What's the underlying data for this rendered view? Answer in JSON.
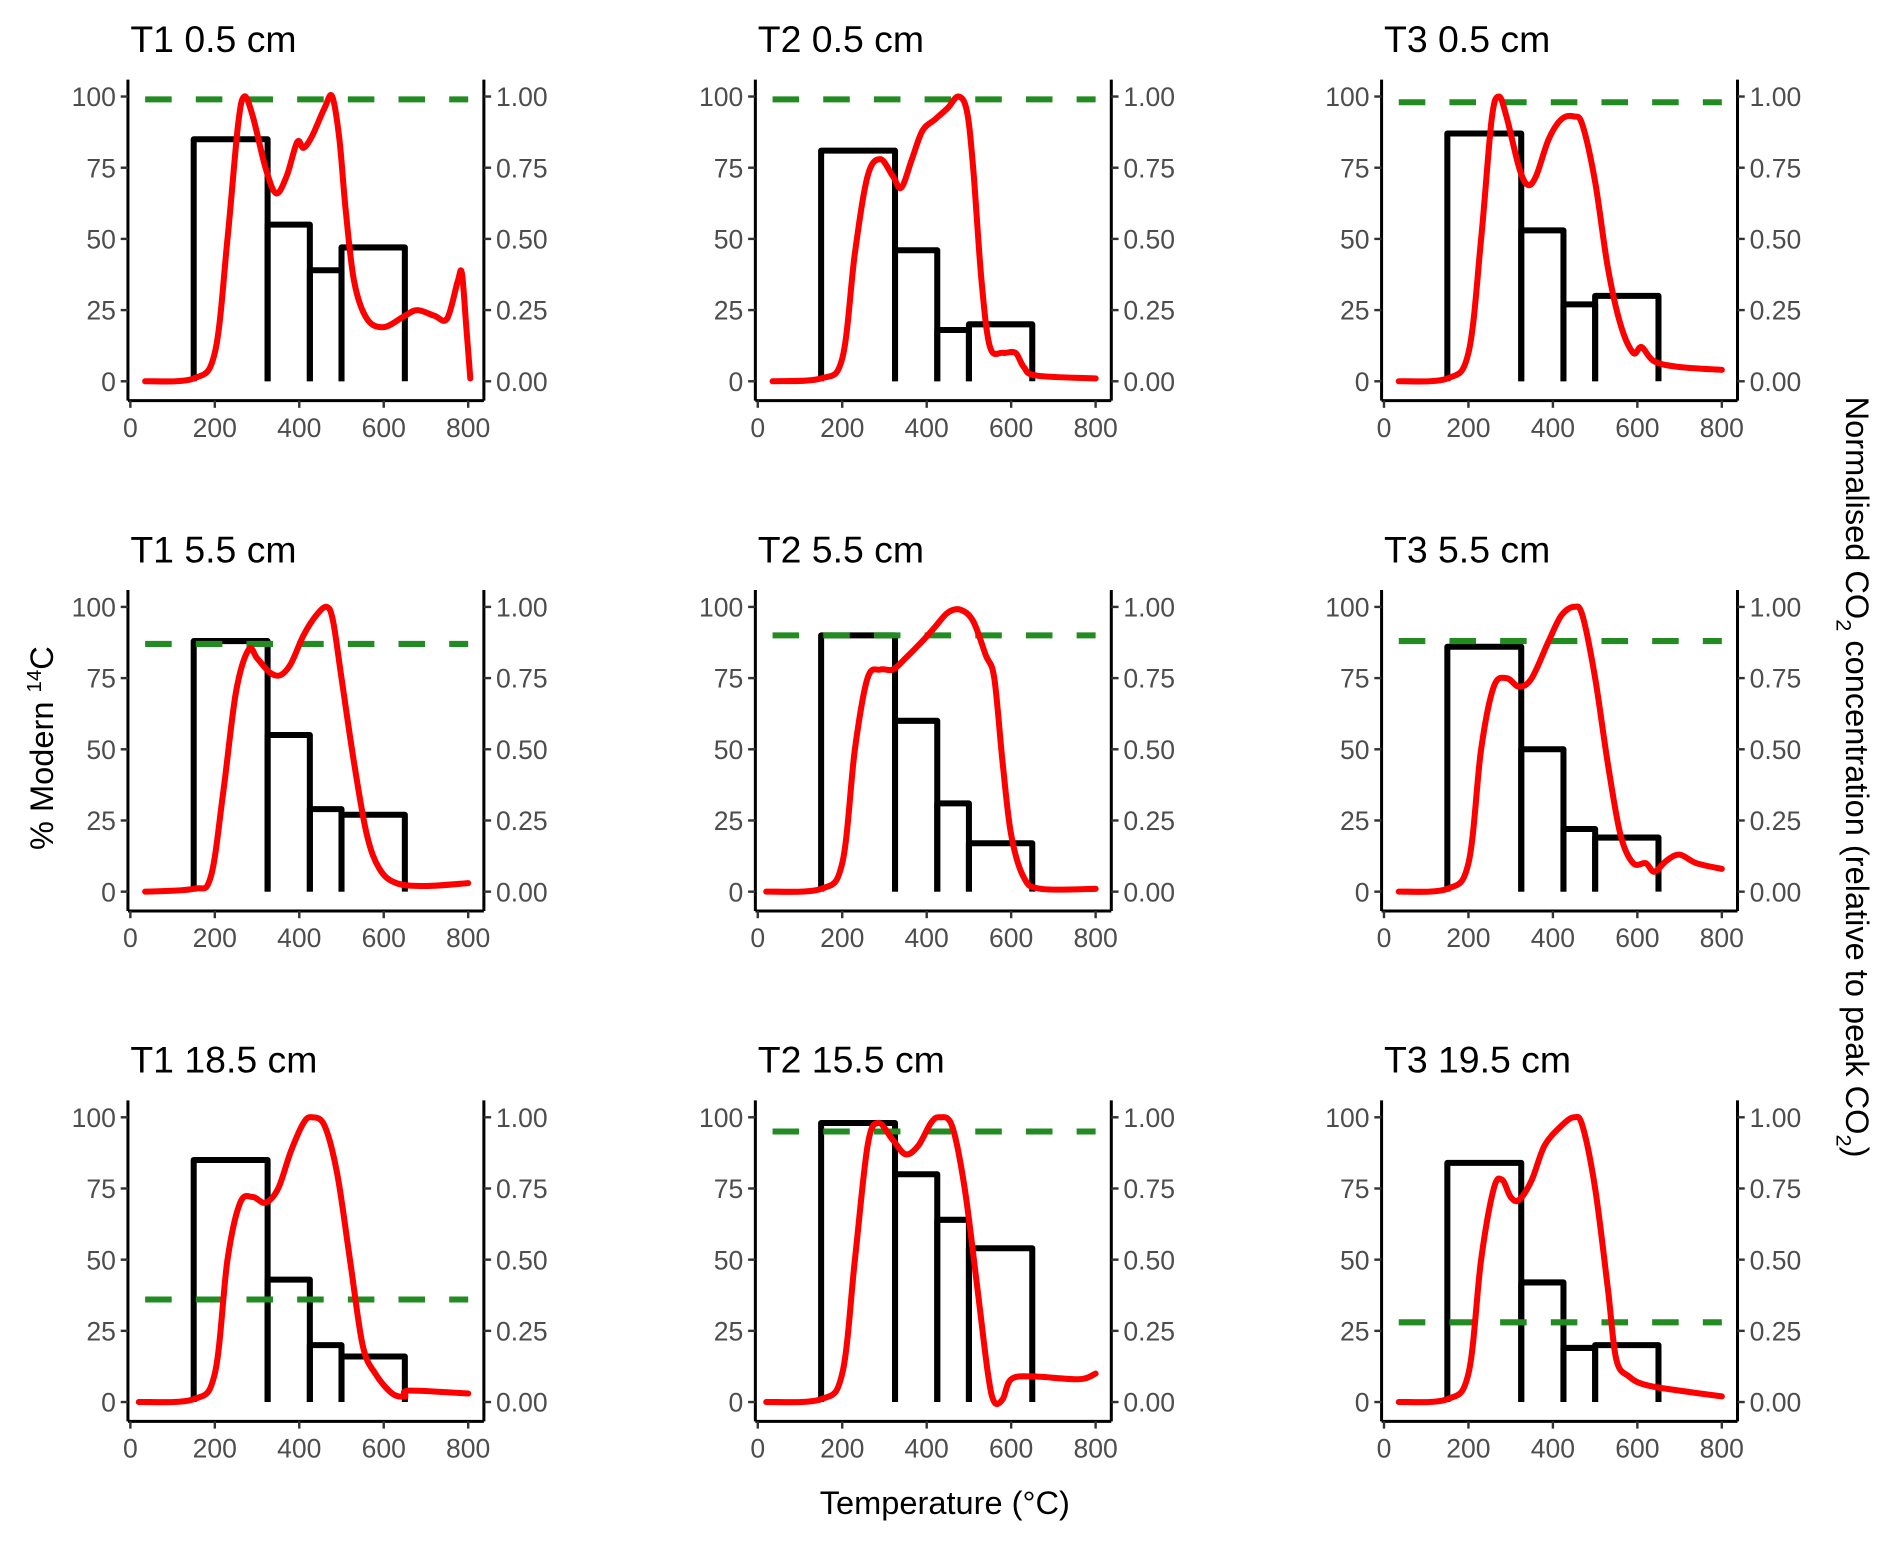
{
  "chart_data": {
    "type": "line",
    "xlabel": "Temperature (°C)",
    "ylabel_left": "% Modern ¹⁴C",
    "ylabel_left_main": "% Modern ",
    "ylabel_left_sup": "14",
    "ylabel_left_end": "C",
    "ylabel_right": "Normalised CO₂ concentration (relative to peak CO₂)",
    "ylabel_right_a": "Normalised CO",
    "ylabel_right_b": " concentration (relative to peak CO",
    "ylabel_right_c": ")",
    "sub2": "2",
    "xlim": [
      0,
      800
    ],
    "ylim_left": [
      0,
      100
    ],
    "ylim_right": [
      0,
      1
    ],
    "x_ticks": [
      "0",
      "200",
      "400",
      "600",
      "800"
    ],
    "y_ticks_left": [
      "0",
      "25",
      "50",
      "75",
      "100"
    ],
    "y_ticks_right": [
      "0.00",
      "0.25",
      "0.50",
      "0.75",
      "1.00"
    ],
    "colors": {
      "bars": "#000000",
      "co2": "#ff0000",
      "bulk": "#228b22"
    },
    "bar_edges": [
      150,
      325,
      425,
      500,
      650
    ],
    "panels": [
      {
        "title": "T1 0.5 cm",
        "bulk": 99,
        "bars": [
          85,
          55,
          39,
          47
        ],
        "co2": [
          [
            35,
            0
          ],
          [
            150,
            0.01
          ],
          [
            200,
            0.1
          ],
          [
            230,
            0.5
          ],
          [
            255,
            0.9
          ],
          [
            270,
            1.0
          ],
          [
            290,
            0.93
          ],
          [
            320,
            0.75
          ],
          [
            345,
            0.66
          ],
          [
            370,
            0.72
          ],
          [
            395,
            0.84
          ],
          [
            410,
            0.82
          ],
          [
            430,
            0.86
          ],
          [
            460,
            0.96
          ],
          [
            478,
            1.0
          ],
          [
            495,
            0.85
          ],
          [
            510,
            0.6
          ],
          [
            530,
            0.35
          ],
          [
            560,
            0.22
          ],
          [
            600,
            0.19
          ],
          [
            650,
            0.23
          ],
          [
            680,
            0.25
          ],
          [
            720,
            0.23
          ],
          [
            750,
            0.22
          ],
          [
            775,
            0.35
          ],
          [
            785,
            0.38
          ],
          [
            795,
            0.2
          ],
          [
            805,
            0.01
          ]
        ]
      },
      {
        "title": "T2 0.5 cm",
        "bulk": 99,
        "bars": [
          81,
          46,
          18,
          20
        ],
        "co2": [
          [
            35,
            0
          ],
          [
            150,
            0.01
          ],
          [
            200,
            0.08
          ],
          [
            230,
            0.45
          ],
          [
            260,
            0.72
          ],
          [
            290,
            0.78
          ],
          [
            320,
            0.72
          ],
          [
            340,
            0.68
          ],
          [
            365,
            0.78
          ],
          [
            390,
            0.88
          ],
          [
            420,
            0.92
          ],
          [
            450,
            0.96
          ],
          [
            475,
            1.0
          ],
          [
            495,
            0.95
          ],
          [
            510,
            0.75
          ],
          [
            530,
            0.35
          ],
          [
            550,
            0.12
          ],
          [
            580,
            0.1
          ],
          [
            610,
            0.1
          ],
          [
            630,
            0.05
          ],
          [
            660,
            0.02
          ],
          [
            800,
            0.01
          ]
        ]
      },
      {
        "title": "T3 0.5 cm",
        "bulk": 98,
        "bars": [
          87,
          53,
          27,
          30
        ],
        "co2": [
          [
            35,
            0
          ],
          [
            150,
            0.01
          ],
          [
            200,
            0.1
          ],
          [
            230,
            0.5
          ],
          [
            255,
            0.92
          ],
          [
            272,
            1.0
          ],
          [
            290,
            0.93
          ],
          [
            320,
            0.75
          ],
          [
            340,
            0.69
          ],
          [
            360,
            0.72
          ],
          [
            390,
            0.85
          ],
          [
            420,
            0.92
          ],
          [
            450,
            0.93
          ],
          [
            470,
            0.9
          ],
          [
            500,
            0.7
          ],
          [
            530,
            0.4
          ],
          [
            560,
            0.2
          ],
          [
            590,
            0.1
          ],
          [
            610,
            0.12
          ],
          [
            640,
            0.07
          ],
          [
            700,
            0.05
          ],
          [
            800,
            0.04
          ]
        ]
      },
      {
        "title": "T1 5.5 cm",
        "bulk": 87,
        "bars": [
          88,
          55,
          29,
          27
        ],
        "co2": [
          [
            35,
            0
          ],
          [
            150,
            0.01
          ],
          [
            190,
            0.05
          ],
          [
            220,
            0.35
          ],
          [
            250,
            0.7
          ],
          [
            280,
            0.85
          ],
          [
            300,
            0.82
          ],
          [
            330,
            0.77
          ],
          [
            355,
            0.76
          ],
          [
            380,
            0.8
          ],
          [
            410,
            0.9
          ],
          [
            440,
            0.97
          ],
          [
            465,
            1.0
          ],
          [
            480,
            0.95
          ],
          [
            500,
            0.75
          ],
          [
            530,
            0.45
          ],
          [
            560,
            0.2
          ],
          [
            590,
            0.08
          ],
          [
            630,
            0.03
          ],
          [
            700,
            0.02
          ],
          [
            800,
            0.03
          ]
        ]
      },
      {
        "title": "T2 5.5 cm",
        "bulk": 90,
        "bars": [
          90,
          60,
          31,
          17
        ],
        "co2": [
          [
            20,
            0
          ],
          [
            150,
            0.01
          ],
          [
            200,
            0.1
          ],
          [
            230,
            0.5
          ],
          [
            260,
            0.75
          ],
          [
            290,
            0.78
          ],
          [
            320,
            0.78
          ],
          [
            350,
            0.82
          ],
          [
            390,
            0.88
          ],
          [
            420,
            0.93
          ],
          [
            450,
            0.98
          ],
          [
            480,
            0.99
          ],
          [
            510,
            0.95
          ],
          [
            540,
            0.83
          ],
          [
            560,
            0.75
          ],
          [
            580,
            0.45
          ],
          [
            600,
            0.2
          ],
          [
            630,
            0.05
          ],
          [
            670,
            0.01
          ],
          [
            800,
            0.01
          ]
        ]
      },
      {
        "title": "T3 5.5 cm",
        "bulk": 88,
        "bars": [
          86,
          50,
          22,
          19
        ],
        "co2": [
          [
            35,
            0
          ],
          [
            150,
            0.01
          ],
          [
            200,
            0.1
          ],
          [
            230,
            0.5
          ],
          [
            260,
            0.72
          ],
          [
            290,
            0.75
          ],
          [
            320,
            0.72
          ],
          [
            350,
            0.75
          ],
          [
            390,
            0.88
          ],
          [
            420,
            0.97
          ],
          [
            450,
            1.0
          ],
          [
            470,
            0.97
          ],
          [
            500,
            0.75
          ],
          [
            530,
            0.45
          ],
          [
            560,
            0.2
          ],
          [
            590,
            0.1
          ],
          [
            620,
            0.1
          ],
          [
            640,
            0.07
          ],
          [
            670,
            0.11
          ],
          [
            700,
            0.13
          ],
          [
            740,
            0.1
          ],
          [
            800,
            0.08
          ]
        ]
      },
      {
        "title": "T1 18.5 cm",
        "bulk": 36,
        "bars": [
          85,
          43,
          20,
          16
        ],
        "co2": [
          [
            20,
            0
          ],
          [
            150,
            0.01
          ],
          [
            200,
            0.1
          ],
          [
            230,
            0.5
          ],
          [
            260,
            0.7
          ],
          [
            290,
            0.72
          ],
          [
            320,
            0.7
          ],
          [
            350,
            0.75
          ],
          [
            380,
            0.88
          ],
          [
            410,
            0.98
          ],
          [
            430,
            1.0
          ],
          [
            460,
            0.97
          ],
          [
            490,
            0.8
          ],
          [
            520,
            0.5
          ],
          [
            550,
            0.2
          ],
          [
            580,
            0.1
          ],
          [
            620,
            0.03
          ],
          [
            650,
            0.02
          ],
          [
            660,
            0.04
          ],
          [
            800,
            0.03
          ]
        ]
      },
      {
        "title": "T2 15.5 cm",
        "bulk": 95,
        "bars": [
          98,
          80,
          64,
          54
        ],
        "co2": [
          [
            20,
            0
          ],
          [
            150,
            0.01
          ],
          [
            200,
            0.1
          ],
          [
            230,
            0.5
          ],
          [
            260,
            0.9
          ],
          [
            285,
            0.98
          ],
          [
            320,
            0.92
          ],
          [
            350,
            0.87
          ],
          [
            380,
            0.9
          ],
          [
            410,
            0.98
          ],
          [
            430,
            1.0
          ],
          [
            460,
            0.97
          ],
          [
            490,
            0.75
          ],
          [
            520,
            0.4
          ],
          [
            545,
            0.1
          ],
          [
            560,
            0.0
          ],
          [
            580,
            0.01
          ],
          [
            600,
            0.08
          ],
          [
            650,
            0.09
          ],
          [
            760,
            0.08
          ],
          [
            800,
            0.1
          ]
        ]
      },
      {
        "title": "T3 19.5 cm",
        "bulk": 28,
        "bars": [
          84,
          42,
          19,
          20
        ],
        "co2": [
          [
            35,
            0
          ],
          [
            150,
            0.01
          ],
          [
            200,
            0.1
          ],
          [
            230,
            0.5
          ],
          [
            260,
            0.75
          ],
          [
            280,
            0.78
          ],
          [
            300,
            0.72
          ],
          [
            320,
            0.71
          ],
          [
            350,
            0.78
          ],
          [
            380,
            0.9
          ],
          [
            420,
            0.97
          ],
          [
            450,
            1.0
          ],
          [
            470,
            0.97
          ],
          [
            500,
            0.75
          ],
          [
            530,
            0.4
          ],
          [
            550,
            0.15
          ],
          [
            580,
            0.09
          ],
          [
            620,
            0.06
          ],
          [
            700,
            0.04
          ],
          [
            800,
            0.02
          ]
        ]
      }
    ]
  }
}
